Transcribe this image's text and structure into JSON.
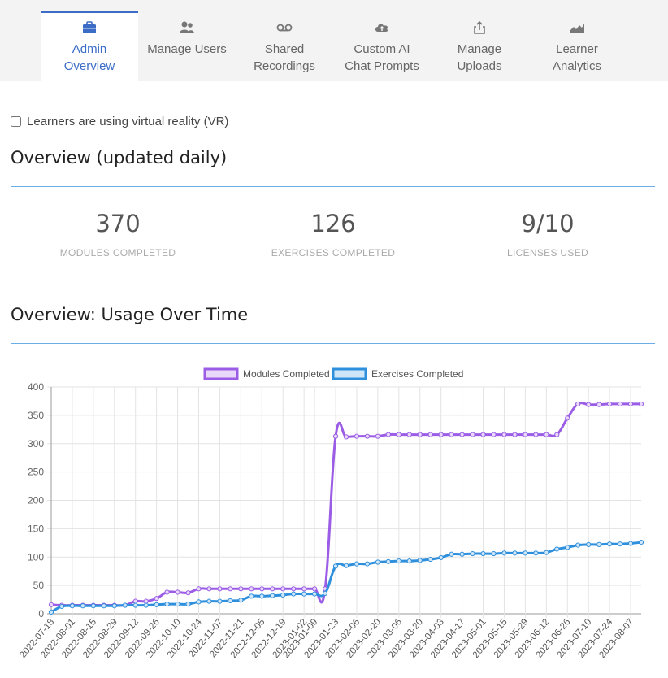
{
  "tabs": [
    {
      "id": "admin-overview",
      "label_line1": "Admin",
      "label_line2": "Overview",
      "icon": "briefcase-icon",
      "active": true
    },
    {
      "id": "manage-users",
      "label_line1": "Manage Users",
      "label_line2": "",
      "icon": "users-icon",
      "active": false
    },
    {
      "id": "shared-recordings",
      "label_line1": "Shared",
      "label_line2": "Recordings",
      "icon": "voicemail-icon",
      "active": false
    },
    {
      "id": "custom-ai",
      "label_line1": "Custom AI",
      "label_line2": "Chat Prompts",
      "icon": "cloud-upload-icon",
      "active": false
    },
    {
      "id": "manage-uploads",
      "label_line1": "Manage",
      "label_line2": "Uploads",
      "icon": "share-icon",
      "active": false
    },
    {
      "id": "learner-analytics",
      "label_line1": "Learner",
      "label_line2": "Analytics",
      "icon": "area-chart-icon",
      "active": false
    }
  ],
  "vr_checkbox": {
    "label": "Learners are using virtual reality (VR)",
    "checked": false
  },
  "overview": {
    "title": "Overview (updated daily)",
    "stats": [
      {
        "value": "370",
        "caption": "MODULES COMPLETED"
      },
      {
        "value": "126",
        "caption": "EXERCISES COMPLETED"
      },
      {
        "value": "9/10",
        "caption": "LICENSES USED"
      }
    ]
  },
  "usage": {
    "title": "Overview: Usage Over Time"
  },
  "colors": {
    "accent": "#3b6cc6",
    "rule": "#6aaee8",
    "modules": "#9b5de5",
    "exercises": "#2e8fdc"
  },
  "chart_data": {
    "type": "line",
    "title": "",
    "xlabel": "",
    "ylabel": "",
    "ylim": [
      0,
      400
    ],
    "yticks": [
      0,
      50,
      100,
      150,
      200,
      250,
      300,
      350,
      400
    ],
    "grid": true,
    "legend_placement": "top",
    "x": [
      "2022-07-18",
      "2022-07-25",
      "2022-08-01",
      "2022-08-08",
      "2022-08-15",
      "2022-08-22",
      "2022-08-29",
      "2022-09-05",
      "2022-09-12",
      "2022-09-19",
      "2022-09-26",
      "2022-10-03",
      "2022-10-10",
      "2022-10-17",
      "2022-10-24",
      "2022-10-31",
      "2022-11-07",
      "2022-11-14",
      "2022-11-21",
      "2022-11-28",
      "2022-12-05",
      "2022-12-12",
      "2022-12-19",
      "2022-12-26",
      "2023-01-02",
      "2023-01-09",
      "2023-01-16",
      "2023-01-23",
      "2023-01-30",
      "2023-02-06",
      "2023-02-13",
      "2023-02-20",
      "2023-02-27",
      "2023-03-06",
      "2023-03-13",
      "2023-03-20",
      "2023-03-27",
      "2023-04-03",
      "2023-04-10",
      "2023-04-17",
      "2023-04-24",
      "2023-05-01",
      "2023-05-08",
      "2023-05-15",
      "2023-05-22",
      "2023-05-29",
      "2023-06-05",
      "2023-06-12",
      "2023-06-19",
      "2023-06-26",
      "2023-07-03",
      "2023-07-10",
      "2023-07-17",
      "2023-07-24",
      "2023-07-31",
      "2023-08-07",
      "2023-08-14"
    ],
    "x_tick_labels": [
      "2022-07-18",
      "2022-08-01",
      "2022-08-15",
      "2022-08-29",
      "2022-09-12",
      "2022-09-26",
      "2022-10-10",
      "2022-10-24",
      "2022-11-07",
      "2022-11-21",
      "2022-12-05",
      "2022-12-19",
      "2023-01-02",
      "2023-01-09",
      "2023-01-23",
      "2023-02-06",
      "2023-02-20",
      "2023-03-06",
      "2023-03-20",
      "2023-04-03",
      "2023-04-17",
      "2023-05-01",
      "2023-05-15",
      "2023-05-29",
      "2023-06-12",
      "2023-06-26",
      "2023-07-10",
      "2023-07-24",
      "2023-08-07"
    ],
    "series": [
      {
        "name": "Modules Completed",
        "color": "#9b5de5",
        "fill": "#e8d9fb",
        "values": [
          16,
          15,
          15,
          15,
          15,
          15,
          15,
          15,
          22,
          22,
          27,
          38,
          38,
          37,
          44,
          44,
          44,
          44,
          44,
          44,
          44,
          44,
          44,
          44,
          44,
          44,
          44,
          313,
          312,
          313,
          313,
          313,
          316,
          316,
          316,
          316,
          316,
          316,
          316,
          316,
          316,
          316,
          316,
          316,
          316,
          316,
          316,
          316,
          316,
          345,
          370,
          369,
          369,
          370,
          370,
          370,
          370
        ]
      },
      {
        "name": "Exercises Completed",
        "color": "#2e8fdc",
        "fill": "#cfe6f8",
        "values": [
          3,
          13,
          14,
          14,
          14,
          14,
          14,
          15,
          15,
          15,
          16,
          17,
          17,
          17,
          21,
          22,
          22,
          23,
          24,
          31,
          31,
          32,
          33,
          35,
          35,
          35,
          36,
          84,
          85,
          88,
          88,
          91,
          92,
          93,
          93,
          94,
          96,
          99,
          105,
          105,
          106,
          106,
          106,
          107,
          107,
          107,
          107,
          108,
          114,
          117,
          121,
          122,
          122,
          123,
          123,
          124,
          126
        ]
      }
    ]
  }
}
